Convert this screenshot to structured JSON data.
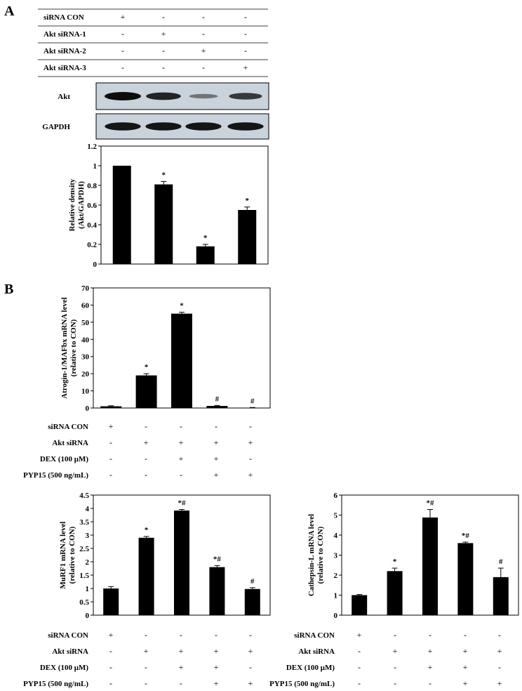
{
  "panels": {
    "a": "A",
    "b": "B"
  },
  "panelA": {
    "rows": [
      {
        "label": "siRNA CON",
        "signs": [
          "+",
          "-",
          "-",
          "-"
        ]
      },
      {
        "label": "Akt siRNA-1",
        "signs": [
          "-",
          "+",
          "-",
          "-"
        ]
      },
      {
        "label": "Akt siRNA-2",
        "signs": [
          "-",
          "-",
          "+",
          "-"
        ]
      },
      {
        "label": "Akt siRNA-3",
        "signs": [
          "-",
          "-",
          "-",
          "+"
        ]
      }
    ],
    "blots": [
      {
        "label": "Akt",
        "intensity": [
          1.0,
          0.85,
          0.3,
          0.7
        ]
      },
      {
        "label": "GAPDH",
        "intensity": [
          0.95,
          0.95,
          0.95,
          0.95
        ]
      }
    ]
  },
  "panelB": {
    "rows": [
      {
        "label": "siRNA CON",
        "signs": [
          "+",
          "-",
          "-",
          "-",
          "-"
        ]
      },
      {
        "label": "Akt siRNA",
        "signs": [
          "-",
          "+",
          "+",
          "+",
          "+"
        ]
      },
      {
        "label": "DEX (100 μM)",
        "signs": [
          "-",
          "-",
          "+",
          "+",
          "-"
        ]
      },
      {
        "label": "PYP15 (500 ng/mL)",
        "signs": [
          "-",
          "-",
          "-",
          "+",
          "+"
        ]
      }
    ]
  },
  "chart_data": [
    {
      "id": "akt-density",
      "type": "bar",
      "ylabel": [
        "Relative density",
        "(Akt/GAPDH)"
      ],
      "ylim": [
        0,
        1.2
      ],
      "yticks": [
        "0",
        "0.2",
        "0.4",
        "0.6",
        "0.8",
        "1",
        "1.2"
      ],
      "values": [
        1.0,
        0.81,
        0.18,
        0.55
      ],
      "errors": [
        0.0,
        0.03,
        0.02,
        0.03
      ],
      "annotations": [
        "",
        "*",
        "*",
        "*"
      ]
    },
    {
      "id": "atrogin",
      "type": "bar",
      "ylabel": [
        "Atrogin-1/MAFbx mRNA level",
        "(relative to CON)"
      ],
      "ylim": [
        0,
        70
      ],
      "yticks": [
        "0",
        "10",
        "20",
        "30",
        "40",
        "50",
        "60",
        "70"
      ],
      "values": [
        1.0,
        19.0,
        55.0,
        1.2,
        0.2
      ],
      "errors": [
        0.3,
        1.0,
        0.8,
        0.3,
        0.1
      ],
      "annotations": [
        "",
        "*",
        "*",
        "#",
        "#"
      ]
    },
    {
      "id": "murf1",
      "type": "bar",
      "ylabel": [
        "MuRF1 mRNA level",
        "(relative to CON)"
      ],
      "ylim": [
        0,
        4.5
      ],
      "yticks": [
        "0",
        "0.5",
        "1",
        "1.5",
        "2",
        "2.5",
        "3",
        "3.5",
        "4",
        "4.5"
      ],
      "values": [
        1.0,
        2.9,
        3.92,
        1.8,
        0.98
      ],
      "errors": [
        0.07,
        0.05,
        0.04,
        0.06,
        0.05
      ],
      "annotations": [
        "",
        "*",
        "*#",
        "*#",
        "#"
      ]
    },
    {
      "id": "cathepsin",
      "type": "bar",
      "ylabel": [
        "Cathepsin-L mRNA level",
        "(relative to  CON)"
      ],
      "ylim": [
        0,
        6
      ],
      "yticks": [
        "0",
        "1",
        "2",
        "3",
        "4",
        "5",
        "6"
      ],
      "values": [
        1.0,
        2.2,
        4.88,
        3.6,
        1.9
      ],
      "errors": [
        0.03,
        0.15,
        0.4,
        0.05,
        0.45
      ],
      "annotations": [
        "",
        "*",
        "*#",
        "*#",
        "#"
      ]
    }
  ]
}
